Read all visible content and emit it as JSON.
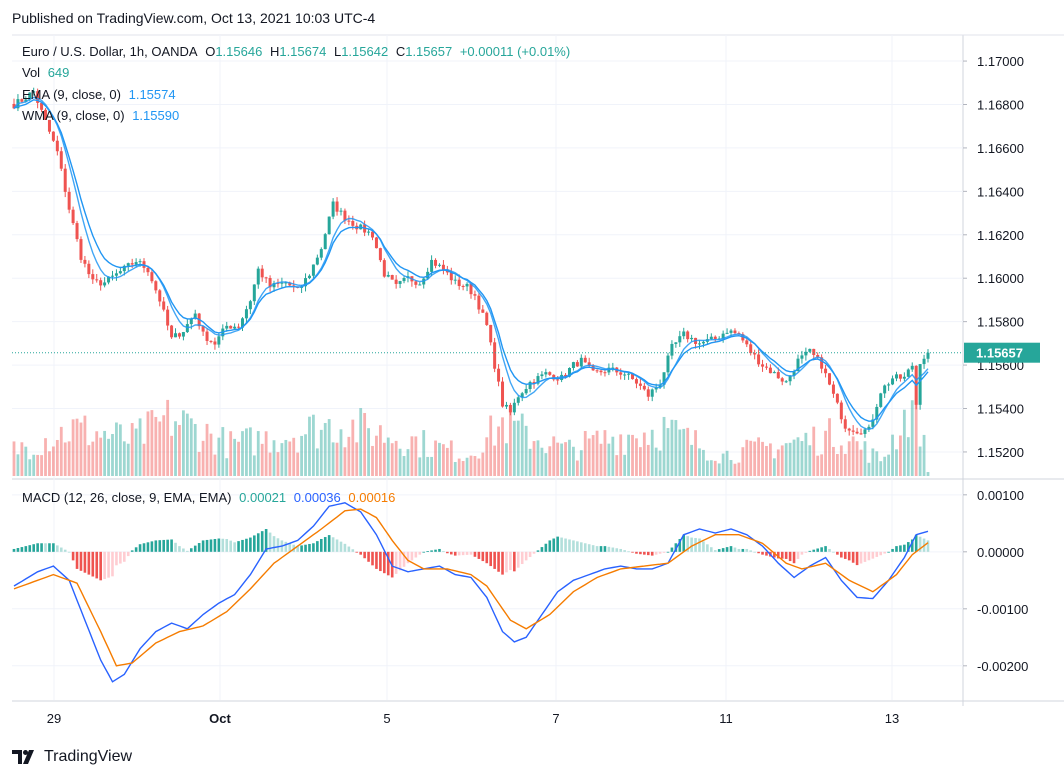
{
  "header": {
    "published_text": "Published on TradingView.com, Oct 13, 2021 10:03 UTC-4"
  },
  "legend": {
    "symbol": "Euro / U.S. Dollar, 1h, OANDA",
    "o_label": "O",
    "o_value": "1.15646",
    "h_label": "H",
    "h_value": "1.15674",
    "l_label": "L",
    "l_value": "1.15642",
    "c_label": "C",
    "c_value": "1.15657",
    "change": "+0.00011 (+0.01%)",
    "vol_label": "Vol",
    "vol_value": "649",
    "ema_label": "EMA (9, close, 0)",
    "ema_value": "1.15574",
    "wma_label": "WMA (9, close, 0)",
    "wma_value": "1.15590"
  },
  "macd_legend": {
    "label": "MACD (12, 26, close, 9, EMA, EMA)",
    "hist_value": "0.00021",
    "macd_value": "0.00036",
    "signal_value": "0.00016"
  },
  "footer": {
    "brand": "TradingView"
  },
  "colors": {
    "up": "#26a69a",
    "down": "#ef5350",
    "ema": "#2196f3",
    "wma": "#2196f3",
    "macd": "#2962ff",
    "signal": "#f57c00",
    "price_label_bg": "#26a69a"
  },
  "chart_data": [
    {
      "type": "candlestick",
      "title": "Euro / U.S. Dollar, 1h, OANDA",
      "price_axis_ticks": [
        "1.17000",
        "1.16800",
        "1.16600",
        "1.16400",
        "1.16200",
        "1.16000",
        "1.15800",
        "1.15600",
        "1.15400",
        "1.15200"
      ],
      "ylim": [
        1.1508,
        1.1712
      ],
      "x_axis_ticks": [
        "29",
        "Oct",
        "5",
        "7",
        "11",
        "13"
      ],
      "last_price_label": "1.15657",
      "close_path": [
        {
          "t": 0,
          "p": 1.168
        },
        {
          "t": 2,
          "p": 1.1682
        },
        {
          "t": 5,
          "p": 1.1686
        },
        {
          "t": 8,
          "p": 1.1672
        },
        {
          "t": 11,
          "p": 1.1658
        },
        {
          "t": 14,
          "p": 1.1632
        },
        {
          "t": 17,
          "p": 1.161
        },
        {
          "t": 20,
          "p": 1.1598
        },
        {
          "t": 23,
          "p": 1.1598
        },
        {
          "t": 27,
          "p": 1.1603
        },
        {
          "t": 31,
          "p": 1.1608
        },
        {
          "t": 34,
          "p": 1.1604
        },
        {
          "t": 37,
          "p": 1.159
        },
        {
          "t": 40,
          "p": 1.1572
        },
        {
          "t": 43,
          "p": 1.1576
        },
        {
          "t": 46,
          "p": 1.1584
        },
        {
          "t": 48,
          "p": 1.1574
        },
        {
          "t": 51,
          "p": 1.157
        },
        {
          "t": 54,
          "p": 1.1578
        },
        {
          "t": 57,
          "p": 1.1578
        },
        {
          "t": 60,
          "p": 1.159
        },
        {
          "t": 62,
          "p": 1.1604
        },
        {
          "t": 65,
          "p": 1.1596
        },
        {
          "t": 69,
          "p": 1.1598
        },
        {
          "t": 72,
          "p": 1.1594
        },
        {
          "t": 75,
          "p": 1.1602
        },
        {
          "t": 78,
          "p": 1.1614
        },
        {
          "t": 81,
          "p": 1.1634
        },
        {
          "t": 84,
          "p": 1.1628
        },
        {
          "t": 87,
          "p": 1.1624
        },
        {
          "t": 91,
          "p": 1.162
        },
        {
          "t": 94,
          "p": 1.1602
        },
        {
          "t": 97,
          "p": 1.1596
        },
        {
          "t": 100,
          "p": 1.16
        },
        {
          "t": 103,
          "p": 1.1598
        },
        {
          "t": 106,
          "p": 1.1608
        },
        {
          "t": 109,
          "p": 1.1604
        },
        {
          "t": 112,
          "p": 1.1598
        },
        {
          "t": 115,
          "p": 1.1596
        },
        {
          "t": 117,
          "p": 1.1592
        },
        {
          "t": 120,
          "p": 1.1578
        },
        {
          "t": 122,
          "p": 1.156
        },
        {
          "t": 124,
          "p": 1.1542
        },
        {
          "t": 126,
          "p": 1.1538
        },
        {
          "t": 128,
          "p": 1.1546
        },
        {
          "t": 131,
          "p": 1.1552
        },
        {
          "t": 135,
          "p": 1.1556
        },
        {
          "t": 139,
          "p": 1.1554
        },
        {
          "t": 142,
          "p": 1.156
        },
        {
          "t": 144,
          "p": 1.1562
        },
        {
          "t": 147,
          "p": 1.1556
        },
        {
          "t": 151,
          "p": 1.1558
        },
        {
          "t": 155,
          "p": 1.1556
        },
        {
          "t": 158,
          "p": 1.1552
        },
        {
          "t": 161,
          "p": 1.1546
        },
        {
          "t": 164,
          "p": 1.1552
        },
        {
          "t": 167,
          "p": 1.1568
        },
        {
          "t": 170,
          "p": 1.1574
        },
        {
          "t": 174,
          "p": 1.157
        },
        {
          "t": 178,
          "p": 1.1572
        },
        {
          "t": 181,
          "p": 1.1576
        },
        {
          "t": 184,
          "p": 1.1574
        },
        {
          "t": 187,
          "p": 1.1566
        },
        {
          "t": 190,
          "p": 1.156
        },
        {
          "t": 193,
          "p": 1.1556
        },
        {
          "t": 196,
          "p": 1.1552
        },
        {
          "t": 199,
          "p": 1.1562
        },
        {
          "t": 202,
          "p": 1.1566
        },
        {
          "t": 205,
          "p": 1.156
        },
        {
          "t": 208,
          "p": 1.1546
        },
        {
          "t": 211,
          "p": 1.1532
        },
        {
          "t": 214,
          "p": 1.153
        },
        {
          "t": 217,
          "p": 1.153
        },
        {
          "t": 220,
          "p": 1.1548
        },
        {
          "t": 223,
          "p": 1.1554
        },
        {
          "t": 226,
          "p": 1.1554
        },
        {
          "t": 228,
          "p": 1.156
        },
        {
          "t": 229,
          "p": 1.1542
        },
        {
          "t": 230,
          "p": 1.1562
        },
        {
          "t": 232,
          "p": 1.15657
        }
      ],
      "indicators": {
        "ema": {
          "name": "EMA (9, close, 0)",
          "last": 1.15574
        },
        "wma": {
          "name": "WMA (9, close, 0)",
          "last": 1.1559
        }
      }
    },
    {
      "type": "bar",
      "title": "Vol",
      "last_value": 649,
      "profile": [
        {
          "t": 0,
          "v": 0.25
        },
        {
          "t": 15,
          "v": 0.45
        },
        {
          "t": 30,
          "v": 0.35
        },
        {
          "t": 40,
          "v": 0.55
        },
        {
          "t": 55,
          "v": 0.3
        },
        {
          "t": 70,
          "v": 0.4
        },
        {
          "t": 82,
          "v": 0.5
        },
        {
          "t": 100,
          "v": 0.35
        },
        {
          "t": 115,
          "v": 0.2
        },
        {
          "t": 124,
          "v": 0.5
        },
        {
          "t": 140,
          "v": 0.25
        },
        {
          "t": 150,
          "v": 0.35
        },
        {
          "t": 165,
          "v": 0.45
        },
        {
          "t": 180,
          "v": 0.2
        },
        {
          "t": 195,
          "v": 0.3
        },
        {
          "t": 210,
          "v": 0.4
        },
        {
          "t": 220,
          "v": 0.15
        },
        {
          "t": 229,
          "v": 0.75
        },
        {
          "t": 232,
          "v": 0.05
        }
      ]
    },
    {
      "type": "line",
      "title": "MACD (12, 26, close, 9, EMA, EMA)",
      "axis_ticks": [
        "0.00100",
        "0.00000",
        "-0.00100",
        "-0.00200"
      ],
      "ylim": [
        -0.0026,
        0.00126
      ],
      "series": [
        {
          "name": "MACD",
          "points": [
            {
              "t": 0,
              "v": -0.0006
            },
            {
              "t": 6,
              "v": -0.00035
            },
            {
              "t": 10,
              "v": -0.00025
            },
            {
              "t": 14,
              "v": -0.0005
            },
            {
              "t": 18,
              "v": -0.0012
            },
            {
              "t": 22,
              "v": -0.0019
            },
            {
              "t": 25,
              "v": -0.00228
            },
            {
              "t": 28,
              "v": -0.00215
            },
            {
              "t": 32,
              "v": -0.0017
            },
            {
              "t": 36,
              "v": -0.0014
            },
            {
              "t": 40,
              "v": -0.00125
            },
            {
              "t": 44,
              "v": -0.00135
            },
            {
              "t": 48,
              "v": -0.0011
            },
            {
              "t": 52,
              "v": -0.0009
            },
            {
              "t": 56,
              "v": -0.00075
            },
            {
              "t": 60,
              "v": -0.0004
            },
            {
              "t": 64,
              "v": 5e-05
            },
            {
              "t": 68,
              "v": 0.0001
            },
            {
              "t": 72,
              "v": 0.0002
            },
            {
              "t": 76,
              "v": 0.00045
            },
            {
              "t": 80,
              "v": 0.0008
            },
            {
              "t": 84,
              "v": 0.00086
            },
            {
              "t": 88,
              "v": 0.0007
            },
            {
              "t": 92,
              "v": 0.0003
            },
            {
              "t": 96,
              "v": -0.00025
            },
            {
              "t": 100,
              "v": -0.00035
            },
            {
              "t": 104,
              "v": -0.0003
            },
            {
              "t": 108,
              "v": -0.00025
            },
            {
              "t": 112,
              "v": -0.0004
            },
            {
              "t": 116,
              "v": -0.00045
            },
            {
              "t": 120,
              "v": -0.0008
            },
            {
              "t": 124,
              "v": -0.0014
            },
            {
              "t": 127,
              "v": -0.00158
            },
            {
              "t": 130,
              "v": -0.0015
            },
            {
              "t": 134,
              "v": -0.0011
            },
            {
              "t": 138,
              "v": -0.0007
            },
            {
              "t": 142,
              "v": -0.0005
            },
            {
              "t": 146,
              "v": -0.0004
            },
            {
              "t": 150,
              "v": -0.0003
            },
            {
              "t": 154,
              "v": -0.00025
            },
            {
              "t": 158,
              "v": -0.0003
            },
            {
              "t": 162,
              "v": -0.0003
            },
            {
              "t": 166,
              "v": -0.0002
            },
            {
              "t": 170,
              "v": 0.0003
            },
            {
              "t": 174,
              "v": 0.0004
            },
            {
              "t": 178,
              "v": 0.00033
            },
            {
              "t": 182,
              "v": 0.0004
            },
            {
              "t": 186,
              "v": 0.0003
            },
            {
              "t": 190,
              "v": 0.0001
            },
            {
              "t": 194,
              "v": -0.0002
            },
            {
              "t": 198,
              "v": -0.00045
            },
            {
              "t": 202,
              "v": -0.00025
            },
            {
              "t": 206,
              "v": -0.0001
            },
            {
              "t": 210,
              "v": -0.0005
            },
            {
              "t": 214,
              "v": -0.0008
            },
            {
              "t": 218,
              "v": -0.00082
            },
            {
              "t": 222,
              "v": -0.0005
            },
            {
              "t": 226,
              "v": -0.0001
            },
            {
              "t": 229,
              "v": 0.0003
            },
            {
              "t": 232,
              "v": 0.00036
            }
          ]
        },
        {
          "name": "Signal",
          "points": [
            {
              "t": 0,
              "v": -0.00065
            },
            {
              "t": 6,
              "v": -0.0005
            },
            {
              "t": 10,
              "v": -0.0004
            },
            {
              "t": 16,
              "v": -0.00055
            },
            {
              "t": 22,
              "v": -0.0014
            },
            {
              "t": 26,
              "v": -0.002
            },
            {
              "t": 30,
              "v": -0.00195
            },
            {
              "t": 36,
              "v": -0.0016
            },
            {
              "t": 42,
              "v": -0.0014
            },
            {
              "t": 48,
              "v": -0.0013
            },
            {
              "t": 54,
              "v": -0.00105
            },
            {
              "t": 60,
              "v": -0.00065
            },
            {
              "t": 66,
              "v": -0.0002
            },
            {
              "t": 72,
              "v": 0.0001
            },
            {
              "t": 78,
              "v": 0.0004
            },
            {
              "t": 84,
              "v": 0.00072
            },
            {
              "t": 88,
              "v": 0.00075
            },
            {
              "t": 92,
              "v": 0.0006
            },
            {
              "t": 96,
              "v": 0.0002
            },
            {
              "t": 100,
              "v": -0.00015
            },
            {
              "t": 104,
              "v": -0.0003
            },
            {
              "t": 110,
              "v": -0.0003
            },
            {
              "t": 116,
              "v": -0.0004
            },
            {
              "t": 120,
              "v": -0.0006
            },
            {
              "t": 126,
              "v": -0.0012
            },
            {
              "t": 130,
              "v": -0.00135
            },
            {
              "t": 136,
              "v": -0.0011
            },
            {
              "t": 142,
              "v": -0.0007
            },
            {
              "t": 148,
              "v": -0.00045
            },
            {
              "t": 154,
              "v": -0.0003
            },
            {
              "t": 160,
              "v": -0.00025
            },
            {
              "t": 166,
              "v": -0.0002
            },
            {
              "t": 172,
              "v": 0.0001
            },
            {
              "t": 178,
              "v": 0.0003
            },
            {
              "t": 184,
              "v": 0.0003
            },
            {
              "t": 190,
              "v": 0.00015
            },
            {
              "t": 196,
              "v": -0.0002
            },
            {
              "t": 200,
              "v": -0.0003
            },
            {
              "t": 206,
              "v": -0.0002
            },
            {
              "t": 212,
              "v": -0.0005
            },
            {
              "t": 218,
              "v": -0.0007
            },
            {
              "t": 224,
              "v": -0.0004
            },
            {
              "t": 228,
              "v": -5e-05
            },
            {
              "t": 232,
              "v": 0.00016
            }
          ]
        }
      ],
      "histogram_last": 0.00021
    }
  ]
}
